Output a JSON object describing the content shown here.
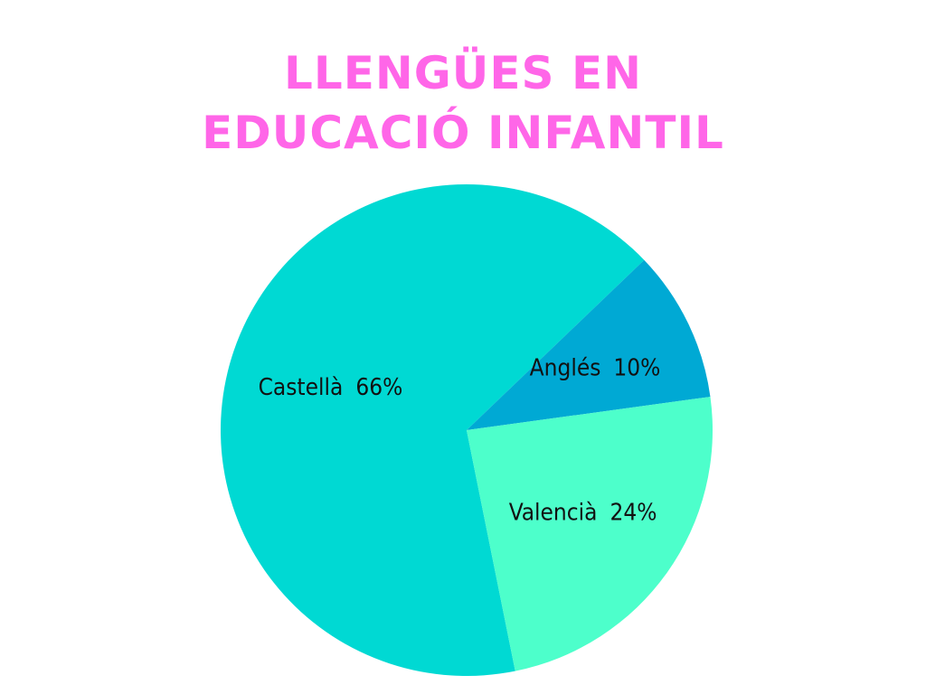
{
  "chart_data": {
    "type": "pie",
    "title": "LLENGÜES EN EDUCACIÓ INFANTIL",
    "categories": [
      "Castellà",
      "Anglés",
      "Valencià"
    ],
    "values": [
      66,
      10,
      24
    ],
    "value_labels": [
      "66%",
      "10%",
      "24%"
    ],
    "colors": [
      "#00d9d3",
      "#00a9d4",
      "#4dffcb"
    ]
  }
}
